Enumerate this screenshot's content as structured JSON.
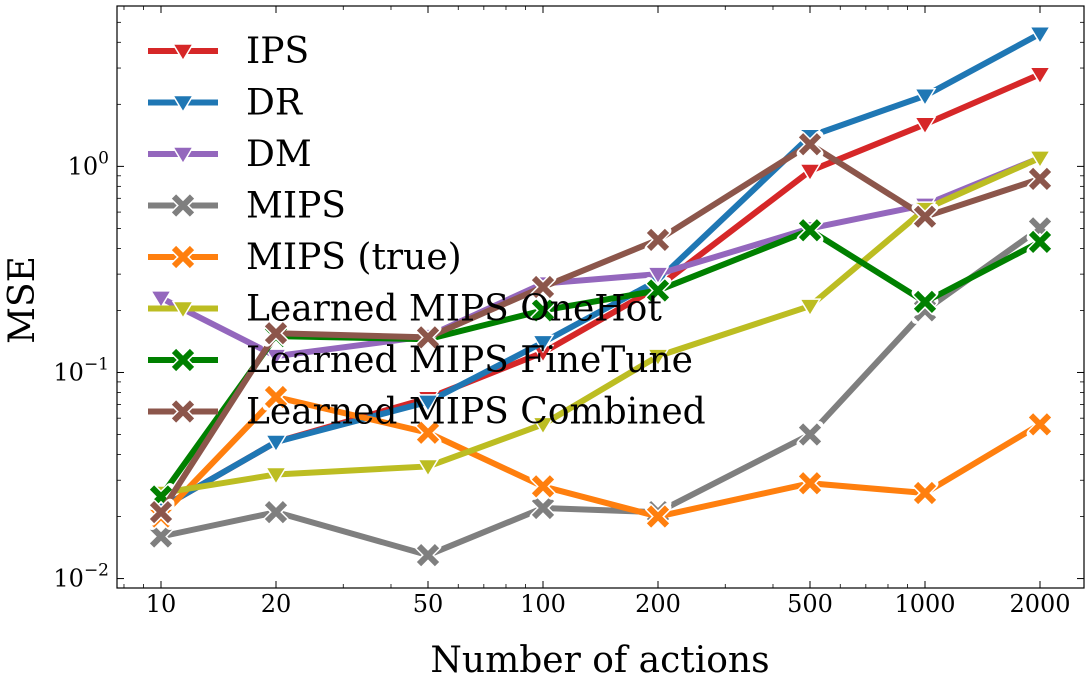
{
  "chart_data": {
    "type": "line",
    "xlabel": "Number of actions",
    "ylabel": "MSE",
    "x": [
      10,
      20,
      50,
      100,
      200,
      500,
      1000,
      2000
    ],
    "x_tick_labels": [
      "10",
      "20",
      "50",
      "100",
      "200",
      "500",
      "1000",
      "2000"
    ],
    "x_scale": "log",
    "y_scale": "log",
    "ylim": [
      0.009,
      6.0
    ],
    "y_tick_labels": [
      {
        "value": 0.01,
        "base": "10",
        "exp": "−2"
      },
      {
        "value": 0.1,
        "base": "10",
        "exp": "−1"
      },
      {
        "value": 1,
        "base": "10",
        "exp": "0"
      }
    ],
    "grid": false,
    "legend_position": "top-left",
    "series": [
      {
        "name": "IPS",
        "color": "#d62728",
        "marker": "triangle-down",
        "values": [
          0.022,
          0.046,
          0.075,
          0.125,
          0.26,
          0.95,
          1.6,
          2.8
        ]
      },
      {
        "name": "DR",
        "color": "#1f77b4",
        "marker": "triangle-down",
        "values": [
          0.022,
          0.046,
          0.072,
          0.14,
          0.28,
          1.4,
          2.2,
          4.4
        ]
      },
      {
        "name": "DM",
        "color": "#9467bd",
        "marker": "triangle-down",
        "values": [
          0.23,
          0.12,
          0.15,
          0.27,
          0.3,
          0.5,
          0.65,
          1.1
        ]
      },
      {
        "name": "MIPS",
        "color": "#7f7f7f",
        "marker": "x-cross",
        "values": [
          0.016,
          0.021,
          0.013,
          0.022,
          0.021,
          0.05,
          0.2,
          0.5
        ]
      },
      {
        "name": "MIPS (true)",
        "color": "#ff7f0e",
        "marker": "x-cross",
        "values": [
          0.02,
          0.076,
          0.051,
          0.028,
          0.02,
          0.029,
          0.026,
          0.056
        ]
      },
      {
        "name": "Learned MIPS OneHot",
        "color": "#bcbd22",
        "marker": "triangle-down",
        "values": [
          0.026,
          0.032,
          0.035,
          0.056,
          0.12,
          0.21,
          0.62,
          1.1
        ]
      },
      {
        "name": "Learned MIPS FineTune",
        "color": "#008000",
        "marker": "x-cross",
        "values": [
          0.025,
          0.15,
          0.145,
          0.2,
          0.25,
          0.49,
          0.22,
          0.43
        ]
      },
      {
        "name": "Learned MIPS Combined",
        "color": "#8c564b",
        "marker": "x-cross",
        "values": [
          0.021,
          0.155,
          0.148,
          0.26,
          0.44,
          1.28,
          0.57,
          0.87
        ]
      }
    ]
  }
}
